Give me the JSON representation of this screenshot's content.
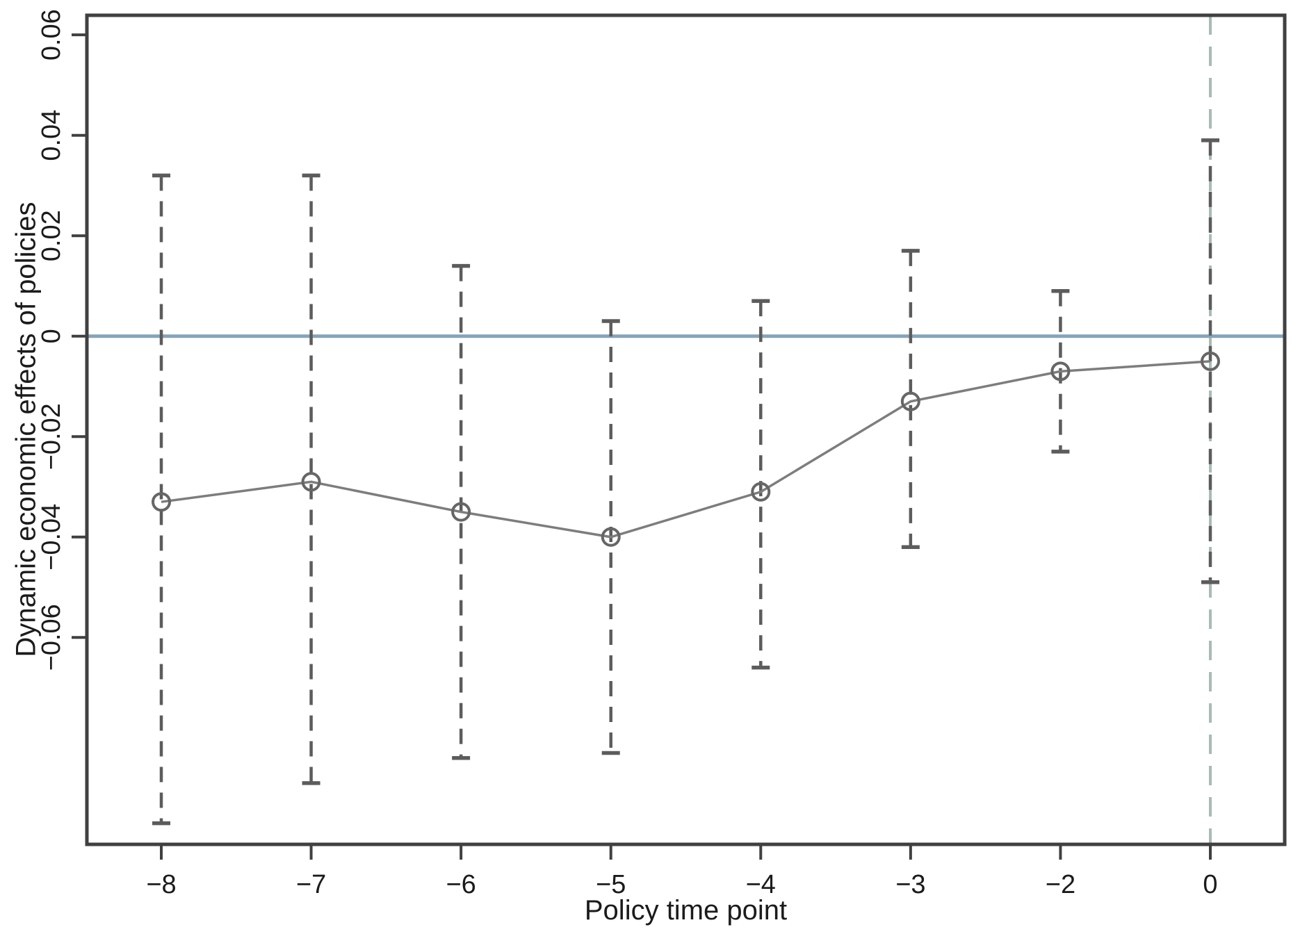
{
  "chart_data": {
    "type": "line",
    "subtype": "event-study-with-error-bars",
    "title": "",
    "xlabel": "Policy time point",
    "ylabel": "Dynamic economic effects of policies",
    "categories": [
      "−8",
      "−7",
      "−6",
      "−5",
      "−4",
      "−3",
      "−2",
      "0"
    ],
    "x_values": [
      -8,
      -7,
      -6,
      -5,
      -4,
      -3,
      -2,
      0
    ],
    "y_ticks": [
      {
        "value": 0.06,
        "label": "0.06"
      },
      {
        "value": 0.04,
        "label": "0.04"
      },
      {
        "value": 0.02,
        "label": "0.02"
      },
      {
        "value": 0,
        "label": "0"
      },
      {
        "value": -0.02,
        "label": "−0.02"
      },
      {
        "value": -0.04,
        "label": "−0.04"
      },
      {
        "value": -0.06,
        "label": "−0.06"
      }
    ],
    "ylim": [
      -0.1012,
      0.0639
    ],
    "grid": false,
    "legend": "none",
    "series": [
      {
        "name": "point estimates with dashed confidence whiskers",
        "estimates": [
          -0.033,
          -0.029,
          -0.035,
          -0.04,
          -0.031,
          -0.013,
          -0.007,
          -0.005
        ],
        "ci_low": [
          -0.097,
          -0.089,
          -0.084,
          -0.083,
          -0.066,
          -0.042,
          -0.023,
          -0.049
        ],
        "ci_high": [
          0.032,
          0.032,
          0.014,
          0.003,
          0.007,
          0.017,
          0.009,
          0.039
        ]
      }
    ],
    "reference_lines": [
      {
        "type": "horizontal",
        "value": 0,
        "style": "solid",
        "color": "#87a3b8"
      },
      {
        "type": "vertical",
        "at_category": "0",
        "style": "dashed",
        "color": "#a9bcb2"
      }
    ],
    "colors": {
      "axis": "#404040",
      "text": "#1b1b1b",
      "marker": "#666666",
      "trend_line": "#7d7d7d",
      "whisker": "#5c5c5c",
      "zero_line": "#87a3b8",
      "event_line": "#a9bcb2"
    }
  }
}
